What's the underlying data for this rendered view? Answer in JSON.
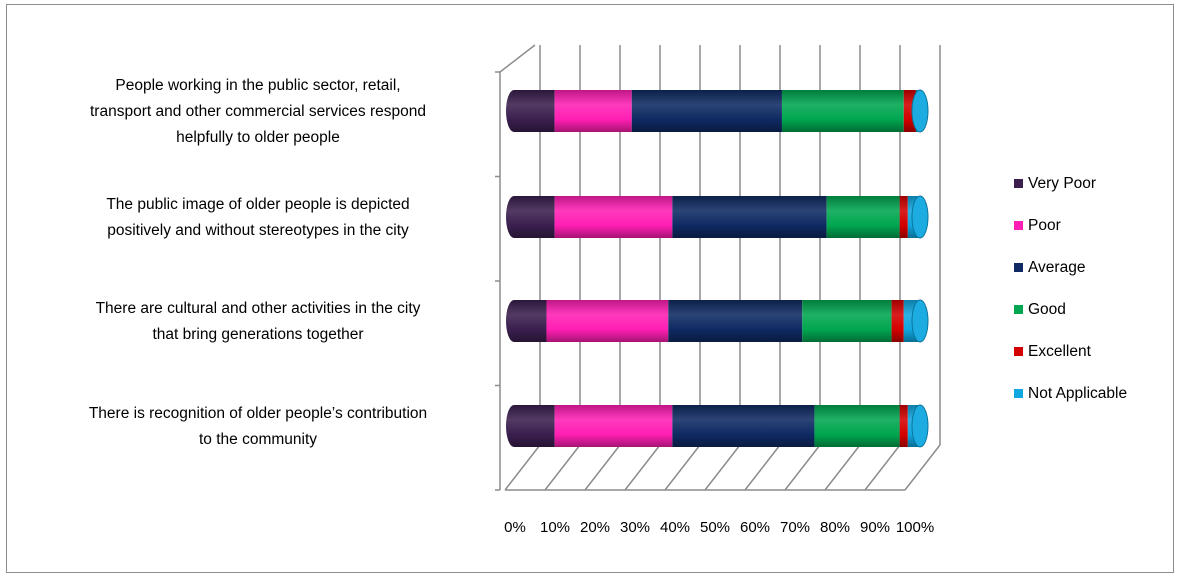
{
  "chart_data": {
    "type": "bar",
    "orientation": "horizontal",
    "stacked": "100%",
    "style": "3d-cylinder",
    "categories": [
      "People working in the public sector, retail, transport and other commercial services respond helpfully to older people",
      "The public image of older people is depicted positively and without stereotypes in the city",
      "There are cultural and other activities in the city that bring generations together",
      "There is recognition of older people’s contribution to the community"
    ],
    "category_lines": [
      [
        "People working in the public sector, retail,",
        "transport and other commercial services respond",
        "helpfully to older people"
      ],
      [
        "The public image of older people is depicted",
        "positively and without stereotypes in the city"
      ],
      [
        "There are cultural and other activities in the city",
        "that bring generations together"
      ],
      [
        "There is recognition of older people’s contribution",
        "to the community"
      ]
    ],
    "series": [
      {
        "name": "Very Poor",
        "color": "#3b1f4f",
        "values": [
          10,
          10,
          8,
          10
        ]
      },
      {
        "name": "Poor",
        "color": "#ff1fb4",
        "values": [
          19,
          29,
          30,
          29
        ]
      },
      {
        "name": "Average",
        "color": "#0f2a63",
        "values": [
          37,
          38,
          33,
          35
        ]
      },
      {
        "name": "Good",
        "color": "#00a650",
        "values": [
          30,
          18,
          22,
          21
        ]
      },
      {
        "name": "Excellent",
        "color": "#d40000",
        "values": [
          3,
          2,
          3,
          2
        ]
      },
      {
        "name": "Not Applicable",
        "color": "#10a8e0",
        "values": [
          1,
          3,
          4,
          3
        ]
      }
    ],
    "x_ticks": [
      "0%",
      "10%",
      "20%",
      "30%",
      "40%",
      "50%",
      "60%",
      "70%",
      "80%",
      "90%",
      "100%"
    ],
    "xlim": [
      0,
      100
    ],
    "grid": true,
    "legend_position": "right"
  }
}
